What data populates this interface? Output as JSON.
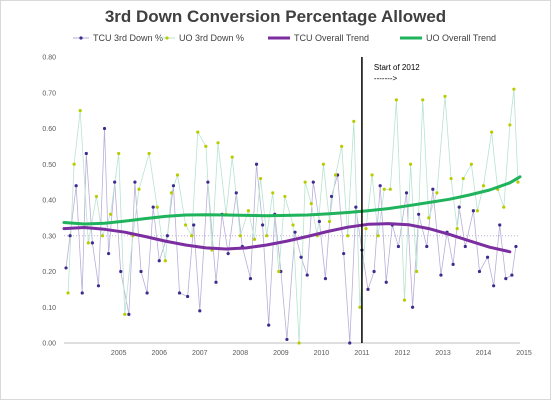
{
  "chart_data": {
    "type": "line",
    "title": "3rd Down Conversion Percentage Allowed",
    "xlabel": "",
    "ylabel": "",
    "ylim": [
      0.0,
      0.8
    ],
    "yticks": [
      "0.00",
      "0.10",
      "0.20",
      "0.30",
      "0.40",
      "0.50",
      "0.60",
      "0.70",
      "0.80"
    ],
    "xticks": [
      "2005",
      "2006",
      "2007",
      "2008",
      "2009",
      "2010",
      "2011",
      "2012",
      "2013",
      "2014",
      "2015"
    ],
    "xlim": [
      2004.0,
      2015.25
    ],
    "legend": {
      "position": "top"
    },
    "grid": false,
    "colors": {
      "tcu_points": "#3d2b8f",
      "uo_points": "#b8cc00",
      "tcu_line": "#b9aed9",
      "uo_line": "#b7e4cf",
      "tcu_trend": "#7b2ea0",
      "uo_trend": "#1fb35c",
      "divider": "#000000"
    },
    "series": [
      {
        "name": "TCU 3rd Down %",
        "kind": "points",
        "color_key": "tcu_points",
        "line_key": "tcu_line",
        "x": [
          2004.05,
          2004.15,
          2004.3,
          2004.45,
          2004.55,
          2004.7,
          2004.85,
          2005.0,
          2005.1,
          2005.25,
          2005.4,
          2005.6,
          2005.75,
          2005.9,
          2006.05,
          2006.2,
          2006.35,
          2006.55,
          2006.7,
          2006.85,
          2007.05,
          2007.2,
          2007.35,
          2007.55,
          2007.75,
          2007.9,
          2008.05,
          2008.25,
          2008.4,
          2008.6,
          2008.75,
          2008.9,
          2009.05,
          2009.2,
          2009.35,
          2009.5,
          2009.7,
          2009.85,
          2010.0,
          2010.15,
          2010.3,
          2010.45,
          2010.6,
          2010.75,
          2010.9,
          2011.05,
          2011.2,
          2011.35,
          2011.5,
          2011.65,
          2011.8,
          2011.95,
          2012.1,
          2012.25,
          2012.45,
          2012.6,
          2012.75,
          2012.95,
          2013.1,
          2013.3,
          2013.45,
          2013.6,
          2013.75,
          2013.9,
          2014.1,
          2014.25,
          2014.45,
          2014.6,
          2014.75,
          2014.9,
          2015.05,
          2015.15
        ],
        "y": [
          0.21,
          0.3,
          0.44,
          0.14,
          0.53,
          0.28,
          0.16,
          0.6,
          0.25,
          0.45,
          0.2,
          0.08,
          0.45,
          0.2,
          0.14,
          0.38,
          0.23,
          0.3,
          0.44,
          0.14,
          0.13,
          0.33,
          0.09,
          0.45,
          0.17,
          0.36,
          0.25,
          0.42,
          0.27,
          0.18,
          0.5,
          0.33,
          0.05,
          0.36,
          0.2,
          0.01,
          0.31,
          0.24,
          0.19,
          0.45,
          0.34,
          0.18,
          0.41,
          0.47,
          0.25,
          0.0,
          0.38,
          0.26,
          0.15,
          0.2,
          0.44,
          0.17,
          0.33,
          0.27,
          0.42,
          0.1,
          0.36,
          0.27,
          0.43,
          0.19,
          0.31,
          0.22,
          0.38,
          0.27,
          0.37,
          0.2,
          0.24,
          0.16,
          0.33,
          0.18,
          0.19,
          0.27
        ]
      },
      {
        "name": "UO 3rd Down %",
        "kind": "points",
        "color_key": "uo_points",
        "line_key": "uo_line",
        "x": [
          2004.1,
          2004.25,
          2004.4,
          2004.6,
          2004.8,
          2004.95,
          2005.15,
          2005.35,
          2005.5,
          2005.7,
          2005.85,
          2006.1,
          2006.3,
          2006.5,
          2006.65,
          2006.8,
          2007.0,
          2007.15,
          2007.3,
          2007.5,
          2007.65,
          2007.8,
          2008.0,
          2008.15,
          2008.35,
          2008.55,
          2008.7,
          2008.85,
          2009.0,
          2009.15,
          2009.3,
          2009.45,
          2009.65,
          2009.8,
          2009.95,
          2010.1,
          2010.25,
          2010.4,
          2010.55,
          2010.7,
          2010.85,
          2011.0,
          2011.15,
          2011.3,
          2011.45,
          2011.6,
          2011.75,
          2011.9,
          2012.05,
          2012.2,
          2012.4,
          2012.55,
          2012.7,
          2012.85,
          2013.0,
          2013.2,
          2013.4,
          2013.55,
          2013.7,
          2013.85,
          2014.05,
          2014.2,
          2014.35,
          2014.55,
          2014.7,
          2014.85,
          2015.0,
          2015.1,
          2015.2
        ],
        "y": [
          0.14,
          0.5,
          0.65,
          0.28,
          0.41,
          0.3,
          0.36,
          0.53,
          0.08,
          0.3,
          0.43,
          0.53,
          0.38,
          0.23,
          0.42,
          0.47,
          0.33,
          0.3,
          0.59,
          0.55,
          0.26,
          0.56,
          0.36,
          0.52,
          0.3,
          0.37,
          0.29,
          0.46,
          0.3,
          0.42,
          0.2,
          0.41,
          0.33,
          0.0,
          0.45,
          0.39,
          0.3,
          0.5,
          0.34,
          0.47,
          0.55,
          0.3,
          0.62,
          0.1,
          0.32,
          0.47,
          0.3,
          0.43,
          0.43,
          0.68,
          0.12,
          0.5,
          0.2,
          0.68,
          0.35,
          0.42,
          0.69,
          0.46,
          0.32,
          0.46,
          0.5,
          0.37,
          0.44,
          0.59,
          0.43,
          0.38,
          0.61,
          0.71,
          0.45
        ]
      },
      {
        "name": "TCU Overall Trend",
        "kind": "trend",
        "color_key": "tcu_trend",
        "x": [
          2004.0,
          2004.5,
          2005.0,
          2005.5,
          2006.0,
          2006.5,
          2007.0,
          2007.5,
          2008.0,
          2008.5,
          2009.0,
          2009.5,
          2010.0,
          2010.5,
          2011.0,
          2011.5,
          2012.0,
          2012.5,
          2013.0,
          2013.5,
          2014.0,
          2014.5,
          2015.0
        ],
        "y": [
          0.32,
          0.323,
          0.318,
          0.31,
          0.298,
          0.285,
          0.274,
          0.266,
          0.263,
          0.266,
          0.274,
          0.285,
          0.298,
          0.312,
          0.324,
          0.332,
          0.334,
          0.331,
          0.32,
          0.304,
          0.286,
          0.268,
          0.255
        ]
      },
      {
        "name": "UO Overall Trend",
        "kind": "trend",
        "color_key": "uo_trend",
        "x": [
          2004.0,
          2004.5,
          2005.0,
          2005.5,
          2006.0,
          2006.5,
          2007.0,
          2007.5,
          2008.0,
          2008.5,
          2009.0,
          2009.5,
          2010.0,
          2010.5,
          2011.0,
          2011.5,
          2012.0,
          2012.5,
          2013.0,
          2013.5,
          2014.0,
          2014.5,
          2015.0,
          2015.25
        ],
        "y": [
          0.337,
          0.333,
          0.335,
          0.341,
          0.348,
          0.354,
          0.358,
          0.359,
          0.358,
          0.357,
          0.356,
          0.357,
          0.358,
          0.361,
          0.365,
          0.37,
          0.376,
          0.384,
          0.393,
          0.402,
          0.414,
          0.428,
          0.448,
          0.465
        ]
      }
    ],
    "annotations": [
      {
        "text": "Start of 2012",
        "x": 2011.35
      },
      {
        "text": "------->",
        "x": 2011.35
      }
    ]
  }
}
